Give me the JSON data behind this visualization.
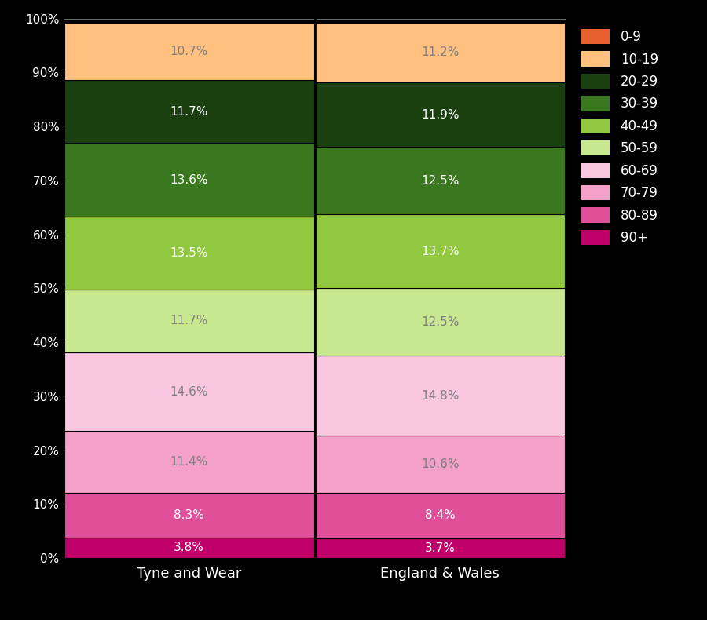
{
  "categories": [
    "Tyne and Wear",
    "England & Wales"
  ],
  "age_groups_bottom_to_top": [
    "90+",
    "80-89",
    "70-79",
    "60-69",
    "50-59",
    "40-49",
    "30-39",
    "20-29",
    "10-19",
    "0-9"
  ],
  "colors_bottom_to_top": [
    "#c0006a",
    "#e0509a",
    "#f4a0c8",
    "#f9c8e0",
    "#c8e890",
    "#90c840",
    "#3a7820",
    "#1a4010",
    "#ffc080",
    "#e86030"
  ],
  "values": {
    "Tyne and Wear": [
      3.8,
      8.3,
      11.4,
      14.6,
      11.7,
      13.5,
      13.6,
      11.7,
      10.7,
      0.0
    ],
    "England & Wales": [
      3.7,
      8.4,
      10.6,
      14.8,
      12.5,
      13.7,
      12.5,
      11.9,
      11.2,
      0.0
    ]
  },
  "labels": {
    "Tyne and Wear": [
      "3.8%",
      "8.3%",
      "11.4%",
      "14.6%",
      "11.7%",
      "13.5%",
      "13.6%",
      "11.7%",
      "10.7%",
      ""
    ],
    "England & Wales": [
      "3.7%",
      "8.4%",
      "10.6%",
      "14.8%",
      "12.5%",
      "13.7%",
      "12.5%",
      "11.9%",
      "11.2%",
      ""
    ]
  },
  "background_color": "#000000",
  "tick_color": "#ffffff",
  "legend_labels": [
    "0-9",
    "10-19",
    "20-29",
    "30-39",
    "40-49",
    "50-59",
    "60-69",
    "70-79",
    "80-89",
    "90+"
  ],
  "legend_colors": [
    "#e86030",
    "#ffc080",
    "#1a4010",
    "#3a7820",
    "#90c840",
    "#c8e890",
    "#f9c8e0",
    "#f4a0c8",
    "#e0509a",
    "#c0006a"
  ],
  "text_colors_bottom_to_top": [
    "white",
    "white",
    "gray",
    "gray",
    "gray",
    "white",
    "white",
    "white",
    "gray",
    "white"
  ],
  "bar_width": 0.995,
  "xlim": [
    -0.5,
    1.5
  ],
  "ylim": [
    0,
    100
  ],
  "yticks": [
    0,
    10,
    20,
    30,
    40,
    50,
    60,
    70,
    80,
    90,
    100
  ],
  "ytick_labels": [
    "0%",
    "10%",
    "20%",
    "30%",
    "40%",
    "50%",
    "60%",
    "70%",
    "80%",
    "90%",
    "100%"
  ],
  "label_fontsize": 11,
  "tick_fontsize": 11,
  "xtick_fontsize": 13,
  "legend_fontsize": 12,
  "divider_x": 0.5,
  "divider_color": "#000000",
  "divider_linewidth": 2
}
